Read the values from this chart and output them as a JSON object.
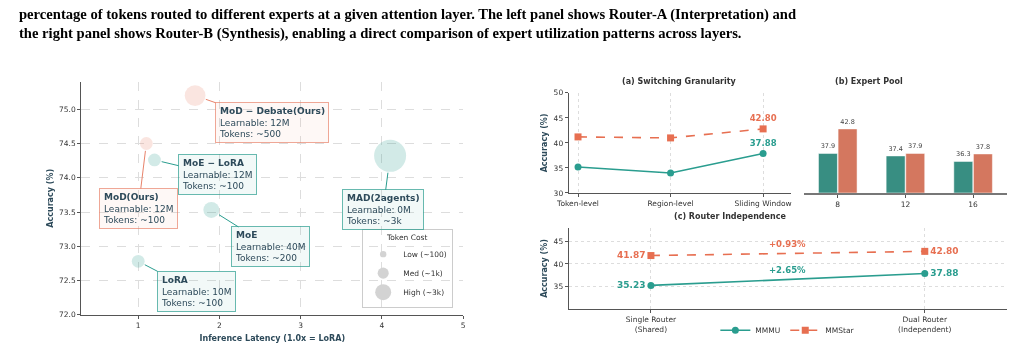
{
  "chart_data": [
    {
      "type": "bubble",
      "xlabel": "Inference Latency (1.0x = LoRA)",
      "ylabel": "Accuracy (%)",
      "xlim": [
        0.3,
        5
      ],
      "xticks": [
        1,
        2,
        3,
        4,
        5
      ],
      "ylim": [
        72,
        75.4
      ],
      "yticks": [
        {
          "value": 72,
          "label": "72.0"
        },
        {
          "value": 72.5,
          "label": "72.5"
        },
        {
          "value": 73,
          "label": "73.0"
        },
        {
          "value": 73.5,
          "label": "73.5"
        },
        {
          "value": 74,
          "label": "74.0"
        },
        {
          "value": 74.5,
          "label": "74.5"
        },
        {
          "value": 75,
          "label": "75.0"
        }
      ],
      "grid": true,
      "legend": "bottom right",
      "legend_title": "Token Cost",
      "size_legend": [
        {
          "value": 0.04,
          "label": "Low (~100)"
        },
        {
          "value": 0.12,
          "label": "Med (~1k)"
        },
        {
          "value": 0.25,
          "label": "High (~3k)"
        }
      ],
      "annotations": [
        "percentage of tokens routed to different experts at a given attention layer. The left panel shows Router-A (Interpretation) and\nthe right panel shows Router-B (Synthesis), enabling a direct comparison of expert utilization patterns across layers.",
        {
          "text": "MoD − Debate(Ours)\nLearnable: 12M\nTokens: ~500",
          "x": 1.7,
          "y": 75.2
        },
        {
          "text": "MoD(Ours)\nLearnable: 12M\nTokens: ~100",
          "x": 1.1,
          "y": 74.5
        },
        {
          "text": "MoE − LoRA\nLearnable: 12M\nTokens: ~100",
          "x": 1.2,
          "y": 74.26
        },
        {
          "text": "MoE\nLearnable: 40M\nTokens: ~200",
          "x": 1.9,
          "y": 73.53
        },
        {
          "text": "LoRA\nLearnable: 10M\nTokens: ~100",
          "x": 1.0,
          "y": 72.78
        },
        {
          "text": "MAD(2agents)\nLearnable: 0M\nTokens: ~3k",
          "x": 4.1,
          "y": 74.32
        }
      ],
      "series": [
        {
          "color": "#e8836b",
          "x": [
            1.7,
            1.1
          ],
          "values": [
            75.2,
            74.5
          ],
          "sizes": [
            0.42,
            0.16
          ]
        },
        {
          "color": "#2a9d8f",
          "x": [
            1.2,
            1.9,
            1.0,
            4.1
          ],
          "values": [
            74.26,
            73.53,
            72.78,
            74.32
          ],
          "sizes": [
            0.16,
            0.25,
            0.16,
            1
          ]
        }
      ]
    },
    {
      "type": "line",
      "title": "(a) Switching Granularity",
      "ylabel": "Accuracy (%)",
      "categories": [
        "Token-level",
        "Region-level",
        "Sliding Window"
      ],
      "ylim": [
        30,
        50
      ],
      "yticks": [
        30,
        35,
        40,
        45,
        50
      ],
      "grid": "x",
      "series": [
        {
          "color": "#2a9d8f",
          "marker": "circle",
          "line_style": "solid",
          "values": [
            35.2,
            34.0,
            37.88
          ],
          "value_labels": [
            null,
            null,
            "37.88"
          ]
        },
        {
          "color": "#e76f51",
          "marker": "square",
          "line_style": "dashed",
          "values": [
            41.2,
            41.0,
            42.8
          ],
          "value_labels": [
            null,
            null,
            "42.80"
          ]
        }
      ]
    },
    {
      "type": "bar",
      "title": "(b) Expert Pool",
      "categories": [
        "8",
        "12",
        "16"
      ],
      "ylim": [
        30,
        50
      ],
      "tick_labels": "x",
      "data_labels": true,
      "series": [
        {
          "color": "#388e82",
          "values": [
            37.9,
            37.4,
            36.3
          ]
        },
        {
          "color": "#d4775f",
          "values": [
            42.8,
            37.9,
            37.8
          ]
        }
      ]
    },
    {
      "type": "line",
      "title": "(c) Router Independence",
      "ylabel": "Accuracy (%)",
      "categories": [
        "Single Router\n(Shared)",
        "Dual Router\n(Independent)"
      ],
      "ylim": [
        30,
        48
      ],
      "yticks": [
        35,
        40,
        45
      ],
      "grid": true,
      "legend": "bottom",
      "annotations": [
        "+2.65%",
        "+0.93%"
      ],
      "series": [
        {
          "name": "MMMU",
          "color": "#2a9d8f",
          "marker": "circle",
          "line_style": "solid",
          "values": [
            35.23,
            37.88
          ],
          "value_labels": [
            "35.23",
            "37.88"
          ]
        },
        {
          "name": "MMStar",
          "color": "#e76f51",
          "marker": "square",
          "line_style": "dashed",
          "values": [
            41.87,
            42.8
          ],
          "value_labels": [
            "41.87",
            "42.80"
          ]
        }
      ]
    }
  ]
}
